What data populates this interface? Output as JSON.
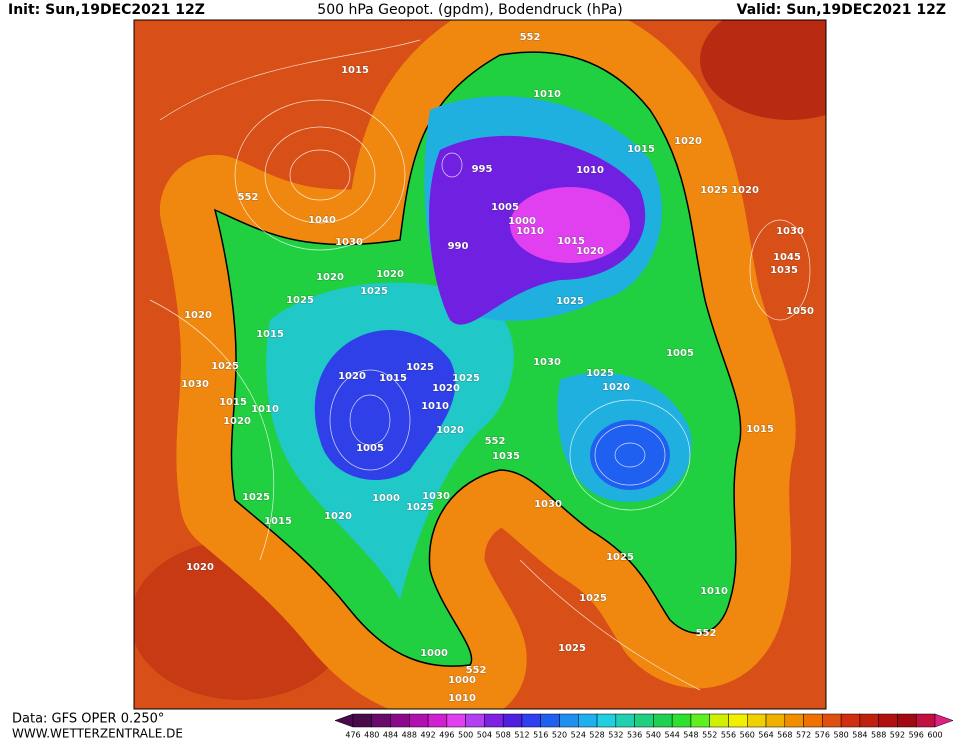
{
  "header": {
    "init": "Init: Sun,19DEC2021 12Z",
    "title": "500 hPa Geopot. (gpdm), Bodendruck (hPa)",
    "valid": "Valid: Sun,19DEC2021 12Z"
  },
  "map": {
    "labels": [
      "552",
      "1015",
      "1010",
      "1015",
      "1020",
      "995",
      "1010",
      "1025",
      "1020",
      "552",
      "1040",
      "1005",
      "1000",
      "1010",
      "1030",
      "990",
      "1015",
      "1020",
      "1030",
      "1045",
      "1035",
      "1020",
      "1020",
      "1025",
      "1025",
      "1025",
      "1050",
      "1020",
      "1015",
      "1030",
      "1005",
      "1025",
      "1020",
      "1025",
      "1015",
      "1025",
      "1025",
      "1020",
      "1030",
      "1020",
      "1015",
      "1010",
      "1010",
      "1020",
      "1020",
      "552",
      "1015",
      "1035",
      "1005",
      "1000",
      "1025",
      "1030",
      "1025",
      "1030",
      "1015",
      "1020",
      "1025",
      "1020",
      "1025",
      "1010",
      "552",
      "1025",
      "1000",
      "552",
      "1000",
      "1010"
    ]
  },
  "footer": {
    "data": "Data: GFS OPER 0.250°",
    "site": "WWW.WETTERZENTRALE.DE"
  },
  "colorbar": {
    "values": [
      476,
      480,
      484,
      488,
      492,
      496,
      500,
      504,
      508,
      512,
      516,
      520,
      524,
      528,
      532,
      536,
      540,
      544,
      548,
      552,
      556,
      560,
      564,
      568,
      572,
      576,
      580,
      584,
      588,
      592,
      596,
      600
    ],
    "colors": [
      "#4b0a4b",
      "#6a0a6a",
      "#8a0a8a",
      "#b010b0",
      "#d020d0",
      "#e040f0",
      "#b040f0",
      "#8020e0",
      "#5020e0",
      "#3040f0",
      "#2060f0",
      "#2090f0",
      "#20b0f0",
      "#20d0e0",
      "#20d0b0",
      "#20d080",
      "#20d050",
      "#30e030",
      "#60f020",
      "#d0f000",
      "#f0f000",
      "#f0d000",
      "#f0b000",
      "#f09000",
      "#f07000",
      "#e05010",
      "#d03010",
      "#c02010",
      "#b01010",
      "#a00a10",
      "#c01040",
      "#e02080"
    ]
  }
}
